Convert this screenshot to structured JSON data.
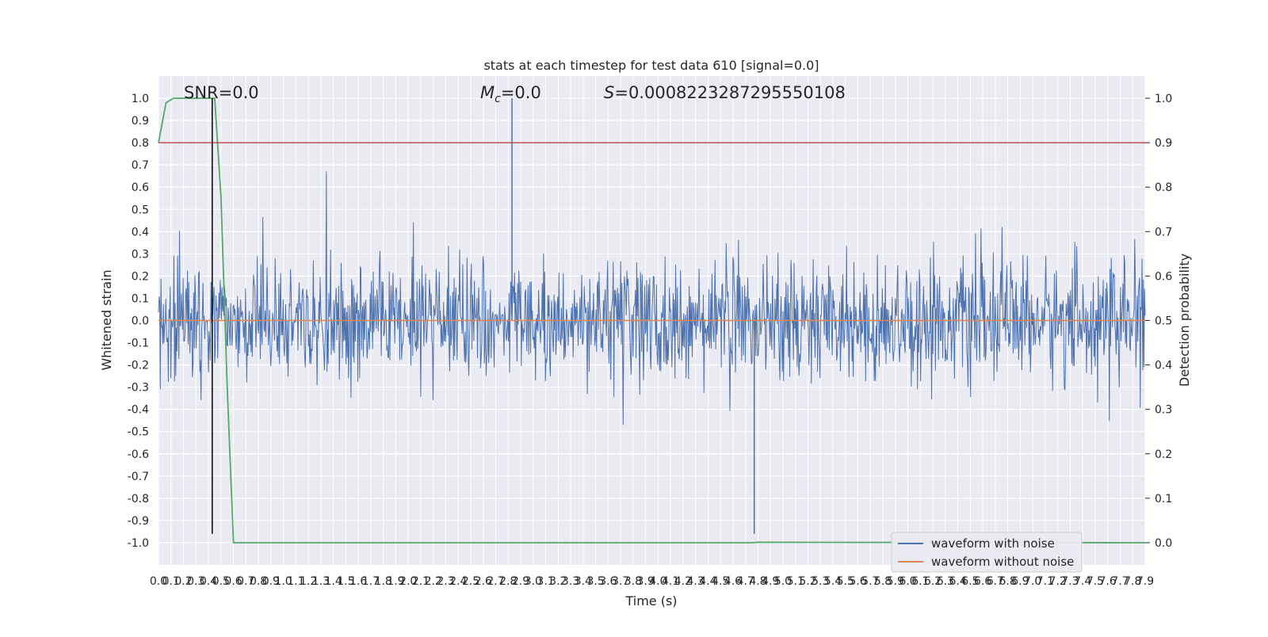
{
  "chart_data": {
    "type": "line",
    "title": "stats at each timestep for test data 610 [signal=0.0]",
    "xlabel": "Time (s)",
    "ylabel_left": "Whitened strain",
    "ylabel_right": "Detection probability",
    "xlim": [
      0.0,
      7.9
    ],
    "ylim_left": [
      -1.1,
      1.1
    ],
    "ylim_right": [
      -0.05,
      1.05
    ],
    "x_ticks": [
      "0.0",
      "0.1",
      "0.2",
      "0.3",
      "0.4",
      "0.5",
      "0.6",
      "0.7",
      "0.8",
      "0.9",
      "1.0",
      "1.1",
      "1.2",
      "1.3",
      "1.4",
      "1.5",
      "1.6",
      "1.7",
      "1.8",
      "1.9",
      "2.0",
      "2.1",
      "2.2",
      "2.3",
      "2.4",
      "2.5",
      "2.6",
      "2.7",
      "2.8",
      "2.9",
      "3.0",
      "3.1",
      "3.2",
      "3.3",
      "3.4",
      "3.5",
      "3.6",
      "3.7",
      "3.8",
      "3.9",
      "4.0",
      "4.1",
      "4.2",
      "4.3",
      "4.4",
      "4.5",
      "4.6",
      "4.7",
      "4.8",
      "4.9",
      "5.0",
      "5.1",
      "5.2",
      "5.3",
      "5.4",
      "5.5",
      "5.6",
      "5.7",
      "5.8",
      "5.9",
      "6.0",
      "6.1",
      "6.2",
      "6.3",
      "6.4",
      "6.5",
      "6.6",
      "6.7",
      "6.8",
      "6.9",
      "7.0",
      "7.1",
      "7.2",
      "7.3",
      "7.4",
      "7.5",
      "7.6",
      "7.7",
      "7.8",
      "7.9"
    ],
    "y_ticks_left": [
      "1.0",
      "0.9",
      "0.8",
      "0.7",
      "0.6",
      "0.5",
      "0.4",
      "0.3",
      "0.2",
      "0.1",
      "0.0",
      "-0.1",
      "-0.2",
      "-0.3",
      "-0.4",
      "-0.5",
      "-0.6",
      "-0.7",
      "-0.8",
      "-0.9",
      "-1.0"
    ],
    "y_ticks_right": [
      "1.0",
      "0.9",
      "0.8",
      "0.7",
      "0.6",
      "0.5",
      "0.4",
      "0.3",
      "0.2",
      "0.1",
      "0.0"
    ],
    "annotations": {
      "snr": "SNR=0.0",
      "mc": "=0.0",
      "mc_symbol": "M",
      "mc_sub": "c",
      "s": "=0.0008223287295550108",
      "s_symbol": "S"
    },
    "legend": {
      "placement": "lower-right",
      "entries": [
        {
          "label": "waveform with noise",
          "color": "#4c72b0"
        },
        {
          "label": "waveform without noise",
          "color": "#dd8452"
        }
      ]
    },
    "series": [
      {
        "name": "waveform with noise",
        "color": "#4c72b0",
        "axis": "left",
        "kind": "noise",
        "sigma": 0.13,
        "peak": 1.0,
        "min": -0.96
      },
      {
        "name": "waveform without noise",
        "color": "#dd8452",
        "axis": "left",
        "x": [
          0.0,
          7.9
        ],
        "y": [
          0.0,
          0.0
        ]
      },
      {
        "color": "#55a868",
        "axis": "right",
        "x": [
          0.0,
          0.06,
          0.12,
          0.2,
          0.3,
          0.4,
          0.45,
          0.5,
          0.55,
          0.6,
          4.75,
          4.8,
          7.9
        ],
        "y": [
          0.9,
          0.99,
          1.0,
          1.0,
          1.0,
          1.0,
          1.0,
          0.78,
          0.35,
          0.0,
          0.0,
          0.001,
          0.0
        ]
      },
      {
        "color": "#c44e52",
        "axis": "left",
        "x": [
          0.0,
          7.9
        ],
        "y": [
          0.8,
          0.8
        ]
      },
      {
        "color": "#000000",
        "axis": "left",
        "x": [
          0.43,
          0.43
        ],
        "y": [
          -0.96,
          1.0
        ]
      }
    ],
    "grid": true
  }
}
